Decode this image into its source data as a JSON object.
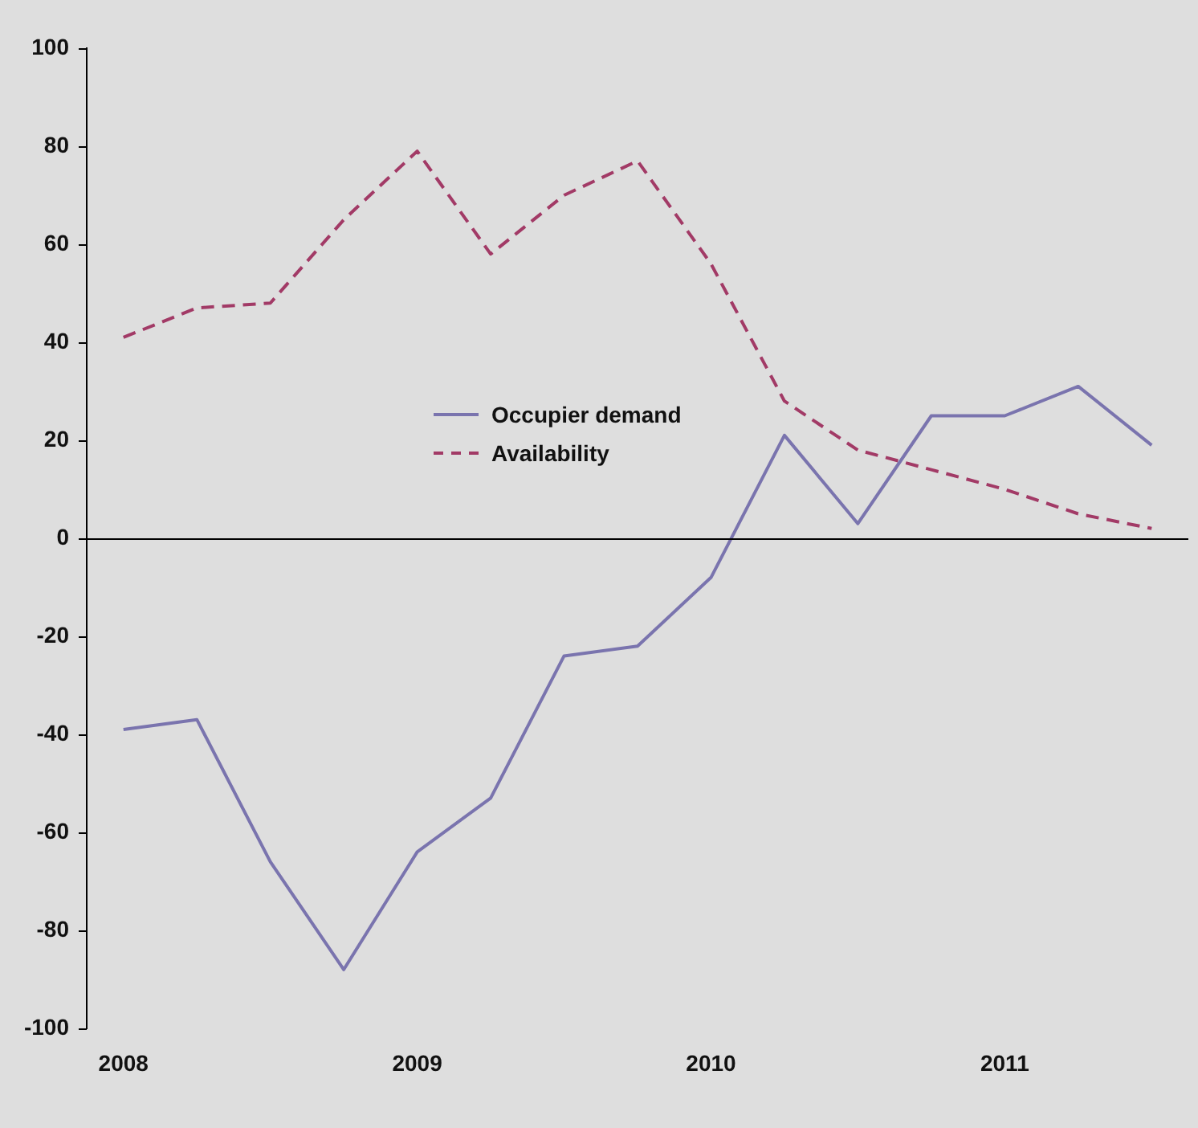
{
  "chart_data": {
    "type": "line",
    "categories": [
      "2008",
      null,
      null,
      null,
      "2009",
      null,
      null,
      null,
      "2010",
      null,
      null,
      null,
      "2011",
      null,
      null
    ],
    "series": [
      {
        "name": "Occupier demand",
        "color": "#7a74ae",
        "line_style": "solid",
        "values": [
          -39,
          -37,
          -66,
          -88,
          -64,
          -53,
          -24,
          -22,
          -8,
          21,
          3,
          25,
          25,
          31,
          19
        ]
      },
      {
        "name": "Availability",
        "color": "#a23a66",
        "line_style": "dashed",
        "values": [
          41,
          47,
          48,
          65,
          79,
          58,
          70,
          77,
          56,
          28,
          18,
          14,
          10,
          5,
          2
        ]
      }
    ],
    "ylim": [
      -100,
      100
    ],
    "yticks": [
      -100,
      -80,
      -60,
      -40,
      -20,
      0,
      20,
      40,
      60,
      80,
      100
    ],
    "ref_lines": [
      {
        "axis": "y",
        "value": 0,
        "color": "#000000"
      }
    ],
    "grid": false,
    "legend": "center",
    "marker": "none"
  }
}
